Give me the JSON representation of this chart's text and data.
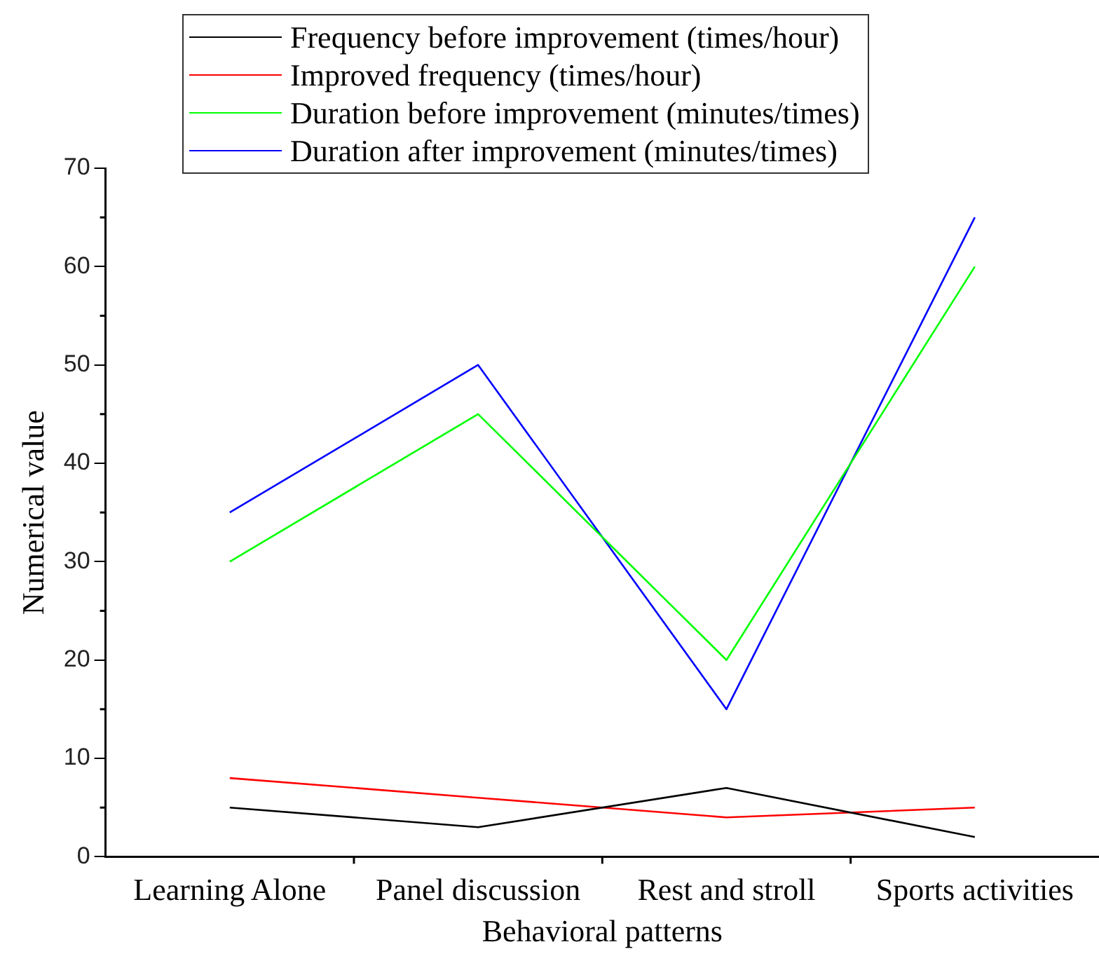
{
  "chart_data": {
    "type": "line",
    "xlabel": "Behavioral patterns",
    "ylabel": "Numerical value",
    "categories": [
      "Learning Alone",
      "Panel discussion",
      "Rest and stroll",
      "Sports activities"
    ],
    "series": [
      {
        "name": "Frequency before improvement (times/hour)",
        "color": "#000000",
        "values": [
          5,
          3,
          7,
          2
        ]
      },
      {
        "name": "Improved frequency (times/hour)",
        "color": "#ff0000",
        "values": [
          8,
          6,
          4,
          5
        ]
      },
      {
        "name": "Duration before improvement (minutes/times)",
        "color": "#00ff00",
        "values": [
          30,
          45,
          20,
          60
        ]
      },
      {
        "name": "Duration after improvement (minutes/times)",
        "color": "#0000ff",
        "values": [
          35,
          50,
          15,
          65
        ]
      }
    ],
    "ylim": [
      0,
      70
    ],
    "yticks": [
      0,
      10,
      20,
      30,
      40,
      50,
      60,
      70
    ],
    "grid": false,
    "legend": "top left",
    "marker": "none",
    "line_style": "solid"
  }
}
